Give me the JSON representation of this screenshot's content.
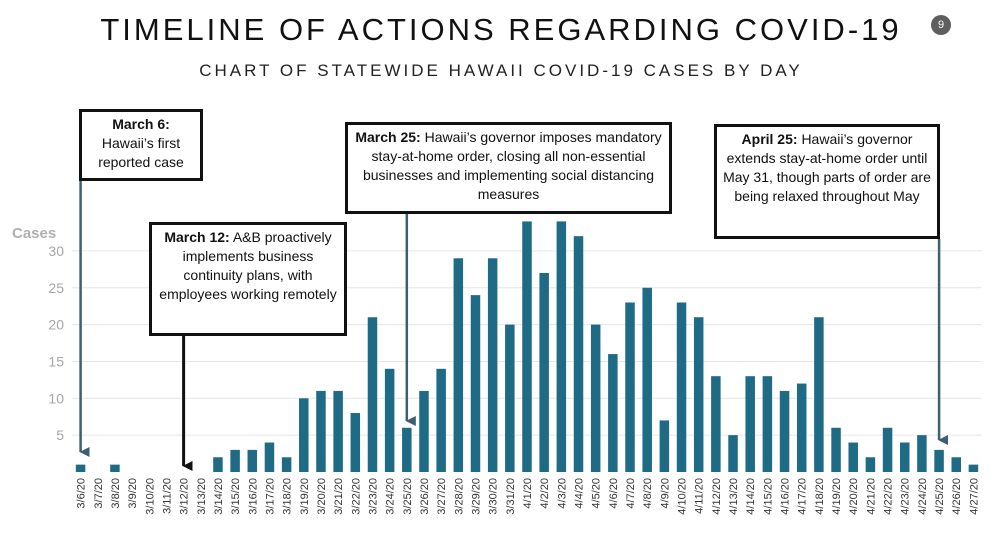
{
  "title": "TIMELINE OF ACTIONS REGARDING COVID-19",
  "page_number": "9",
  "subtitle": "CHART OF STATEWIDE HAWAII COVID-19 CASES BY DAY",
  "colors": {
    "bar": "#1f6b86",
    "arrow_dark": "#111111",
    "arrow_blue": "#3d5f73",
    "grid": "#e6e6e6",
    "axis_text": "#a6a6a6"
  },
  "callouts": [
    {
      "id": "march6",
      "date": "March 6:",
      "text": "Hawaii’s first reported case",
      "x_label": "3/6/20"
    },
    {
      "id": "march12",
      "date": "March 12:",
      "text": "A&B proactively implements business continuity plans, with employees working remotely",
      "x_label": "3/12/20"
    },
    {
      "id": "march25",
      "date": "March 25:",
      "text": "Hawaii’s governor imposes mandatory stay-at-home order, closing all non-essential businesses and implementing social distancing measures",
      "x_label": "3/25/20"
    },
    {
      "id": "april25",
      "date": "April 25:",
      "text": "Hawaii’s governor extends stay-at-home order until May 31, though parts of order are being relaxed throughout May",
      "x_label": "4/25/20"
    }
  ],
  "chart_data": {
    "type": "bar",
    "title": "CHART OF STATEWIDE HAWAII COVID-19 CASES BY DAY",
    "ylabel": "Cases",
    "xlabel": "",
    "ylim": [
      0,
      35
    ],
    "yticks": [
      5,
      10,
      15,
      20,
      25,
      30
    ],
    "grid": true,
    "categories": [
      "3/6/20",
      "3/7/20",
      "3/8/20",
      "3/9/20",
      "3/10/20",
      "3/11/20",
      "3/12/20",
      "3/13/20",
      "3/14/20",
      "3/15/20",
      "3/16/20",
      "3/17/20",
      "3/18/20",
      "3/19/20",
      "3/20/20",
      "3/21/20",
      "3/22/20",
      "3/23/20",
      "3/24/20",
      "3/25/20",
      "3/26/20",
      "3/27/20",
      "3/28/20",
      "3/29/20",
      "3/30/20",
      "3/31/20",
      "4/1/20",
      "4/2/20",
      "4/3/20",
      "4/4/20",
      "4/5/20",
      "4/6/20",
      "4/7/20",
      "4/8/20",
      "4/9/20",
      "4/10/20",
      "4/11/20",
      "4/12/20",
      "4/13/20",
      "4/14/20",
      "4/15/20",
      "4/16/20",
      "4/17/20",
      "4/18/20",
      "4/19/20",
      "4/20/20",
      "4/21/20",
      "4/22/20",
      "4/23/20",
      "4/24/20",
      "4/25/20",
      "4/26/20",
      "4/27/20"
    ],
    "values": [
      1,
      0,
      1,
      0,
      0,
      0,
      0,
      0,
      2,
      3,
      3,
      4,
      2,
      10,
      11,
      11,
      8,
      21,
      14,
      6,
      11,
      14,
      29,
      24,
      29,
      20,
      34,
      27,
      34,
      32,
      20,
      16,
      23,
      25,
      7,
      23,
      21,
      13,
      5,
      13,
      13,
      11,
      12,
      21,
      6,
      4,
      2,
      6,
      4,
      5,
      3,
      2,
      1
    ]
  }
}
